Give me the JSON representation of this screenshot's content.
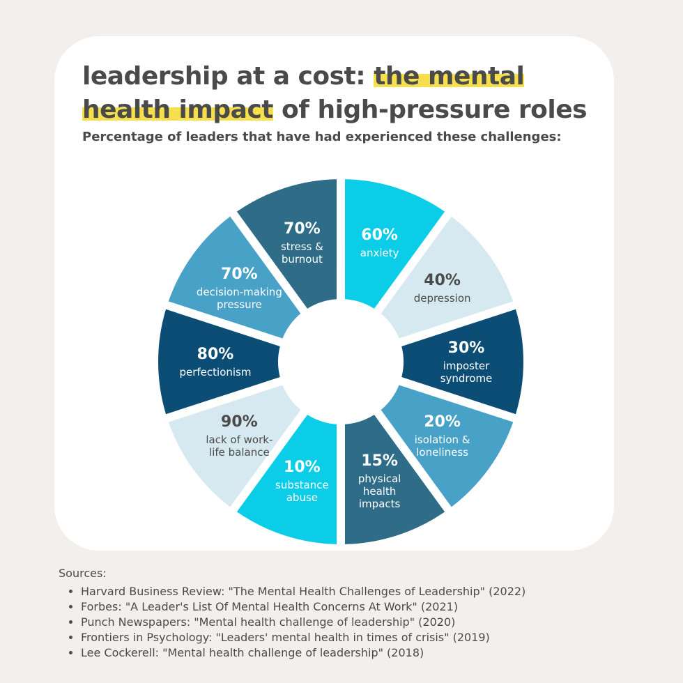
{
  "title": {
    "part1": "leadership at a cost: ",
    "highlight": "the mental health impact",
    "part2": " of high-pressure roles"
  },
  "subtitle": "Percentage of leaders that have had experienced these challenges:",
  "colors": {
    "cyan": "#0bcde8",
    "pale": "#d6e9f1",
    "navy": "#0c4d76",
    "mid": "#48a1c6",
    "slate": "#2f6c88",
    "text_dark": "#4a4a4a"
  },
  "chart_data": {
    "type": "pie",
    "categories": [
      "anxiety",
      "depression",
      "imposter syndrome",
      "isolation & loneliness",
      "physical health impacts",
      "substance abuse",
      "lack of work-life balance",
      "perfectionism",
      "decision-making pressure",
      "stress & burnout"
    ],
    "values": [
      60,
      40,
      30,
      20,
      15,
      10,
      90,
      80,
      70,
      70
    ],
    "segments": [
      {
        "value": 60,
        "pct_label": "60%",
        "label_lines": [
          "anxiety"
        ],
        "color": "#0bcde8",
        "text_color": "#ffffff"
      },
      {
        "value": 40,
        "pct_label": "40%",
        "label_lines": [
          "depression"
        ],
        "color": "#d6e9f1",
        "text_color": "#4a4a4a"
      },
      {
        "value": 30,
        "pct_label": "30%",
        "label_lines": [
          "imposter",
          "syndrome"
        ],
        "color": "#0c4d76",
        "text_color": "#ffffff"
      },
      {
        "value": 20,
        "pct_label": "20%",
        "label_lines": [
          "isolation &",
          "loneliness"
        ],
        "color": "#48a1c6",
        "text_color": "#ffffff"
      },
      {
        "value": 15,
        "pct_label": "15%",
        "label_lines": [
          "physical",
          "health",
          "impacts"
        ],
        "color": "#2f6c88",
        "text_color": "#ffffff"
      },
      {
        "value": 10,
        "pct_label": "10%",
        "label_lines": [
          "substance",
          "abuse"
        ],
        "color": "#0bcde8",
        "text_color": "#ffffff"
      },
      {
        "value": 90,
        "pct_label": "90%",
        "label_lines": [
          "lack of work-",
          "life balance"
        ],
        "color": "#d6e9f1",
        "text_color": "#4a4a4a"
      },
      {
        "value": 80,
        "pct_label": "80%",
        "label_lines": [
          "perfectionism"
        ],
        "color": "#0c4d76",
        "text_color": "#ffffff"
      },
      {
        "value": 70,
        "pct_label": "70%",
        "label_lines": [
          "decision-making",
          "pressure"
        ],
        "color": "#48a1c6",
        "text_color": "#ffffff"
      },
      {
        "value": 70,
        "pct_label": "70%",
        "label_lines": [
          "stress &",
          "burnout"
        ],
        "color": "#2f6c88",
        "text_color": "#ffffff"
      }
    ]
  },
  "sources": {
    "heading": "Sources:",
    "items": [
      "Harvard Business Review: \"The Mental Health Challenges of Leadership\" (2022)",
      "Forbes: \"A Leader's List Of Mental Health Concerns At Work\" (2021)",
      "Punch Newspapers: \"Mental health challenge of leadership\" (2020)",
      "Frontiers in Psychology: \"Leaders' mental health in times of crisis\" (2019)",
      "Lee Cockerell: \"Mental health challenge of leadership\" (2018)"
    ]
  }
}
